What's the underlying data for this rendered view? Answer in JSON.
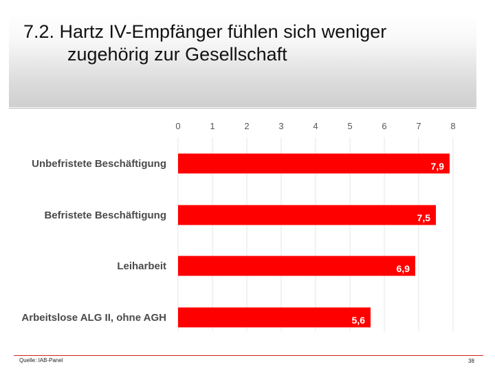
{
  "slide": {
    "title_line1": "7.2. Hartz IV-Empfänger fühlen sich weniger",
    "title_line2": "zugehörig zur Gesellschaft",
    "source": "Quelle: IAB-Panel",
    "page_number": "38"
  },
  "colors": {
    "bar": "#ff0000",
    "bar_label": "#ffffff",
    "category_label": "#4a4a4a",
    "tick_label": "#555555",
    "gridline": "#e6e6e6"
  },
  "chart_data": {
    "type": "bar",
    "orientation": "horizontal",
    "categories": [
      "Unbefristete Beschäftigung",
      "Befristete Beschäftigung",
      "Leiharbeit",
      "Arbeitslose ALG II, ohne AGH"
    ],
    "values": [
      7.9,
      7.5,
      6.9,
      5.6
    ],
    "value_labels": [
      "7,9",
      "7,5",
      "6,9",
      "5,6"
    ],
    "xlim": [
      0,
      8
    ],
    "xticks": [
      "0",
      "1",
      "2",
      "3",
      "4",
      "5",
      "6",
      "7",
      "8"
    ],
    "x_axis_position": "top",
    "grid": true,
    "title": "",
    "xlabel": "",
    "ylabel": ""
  }
}
